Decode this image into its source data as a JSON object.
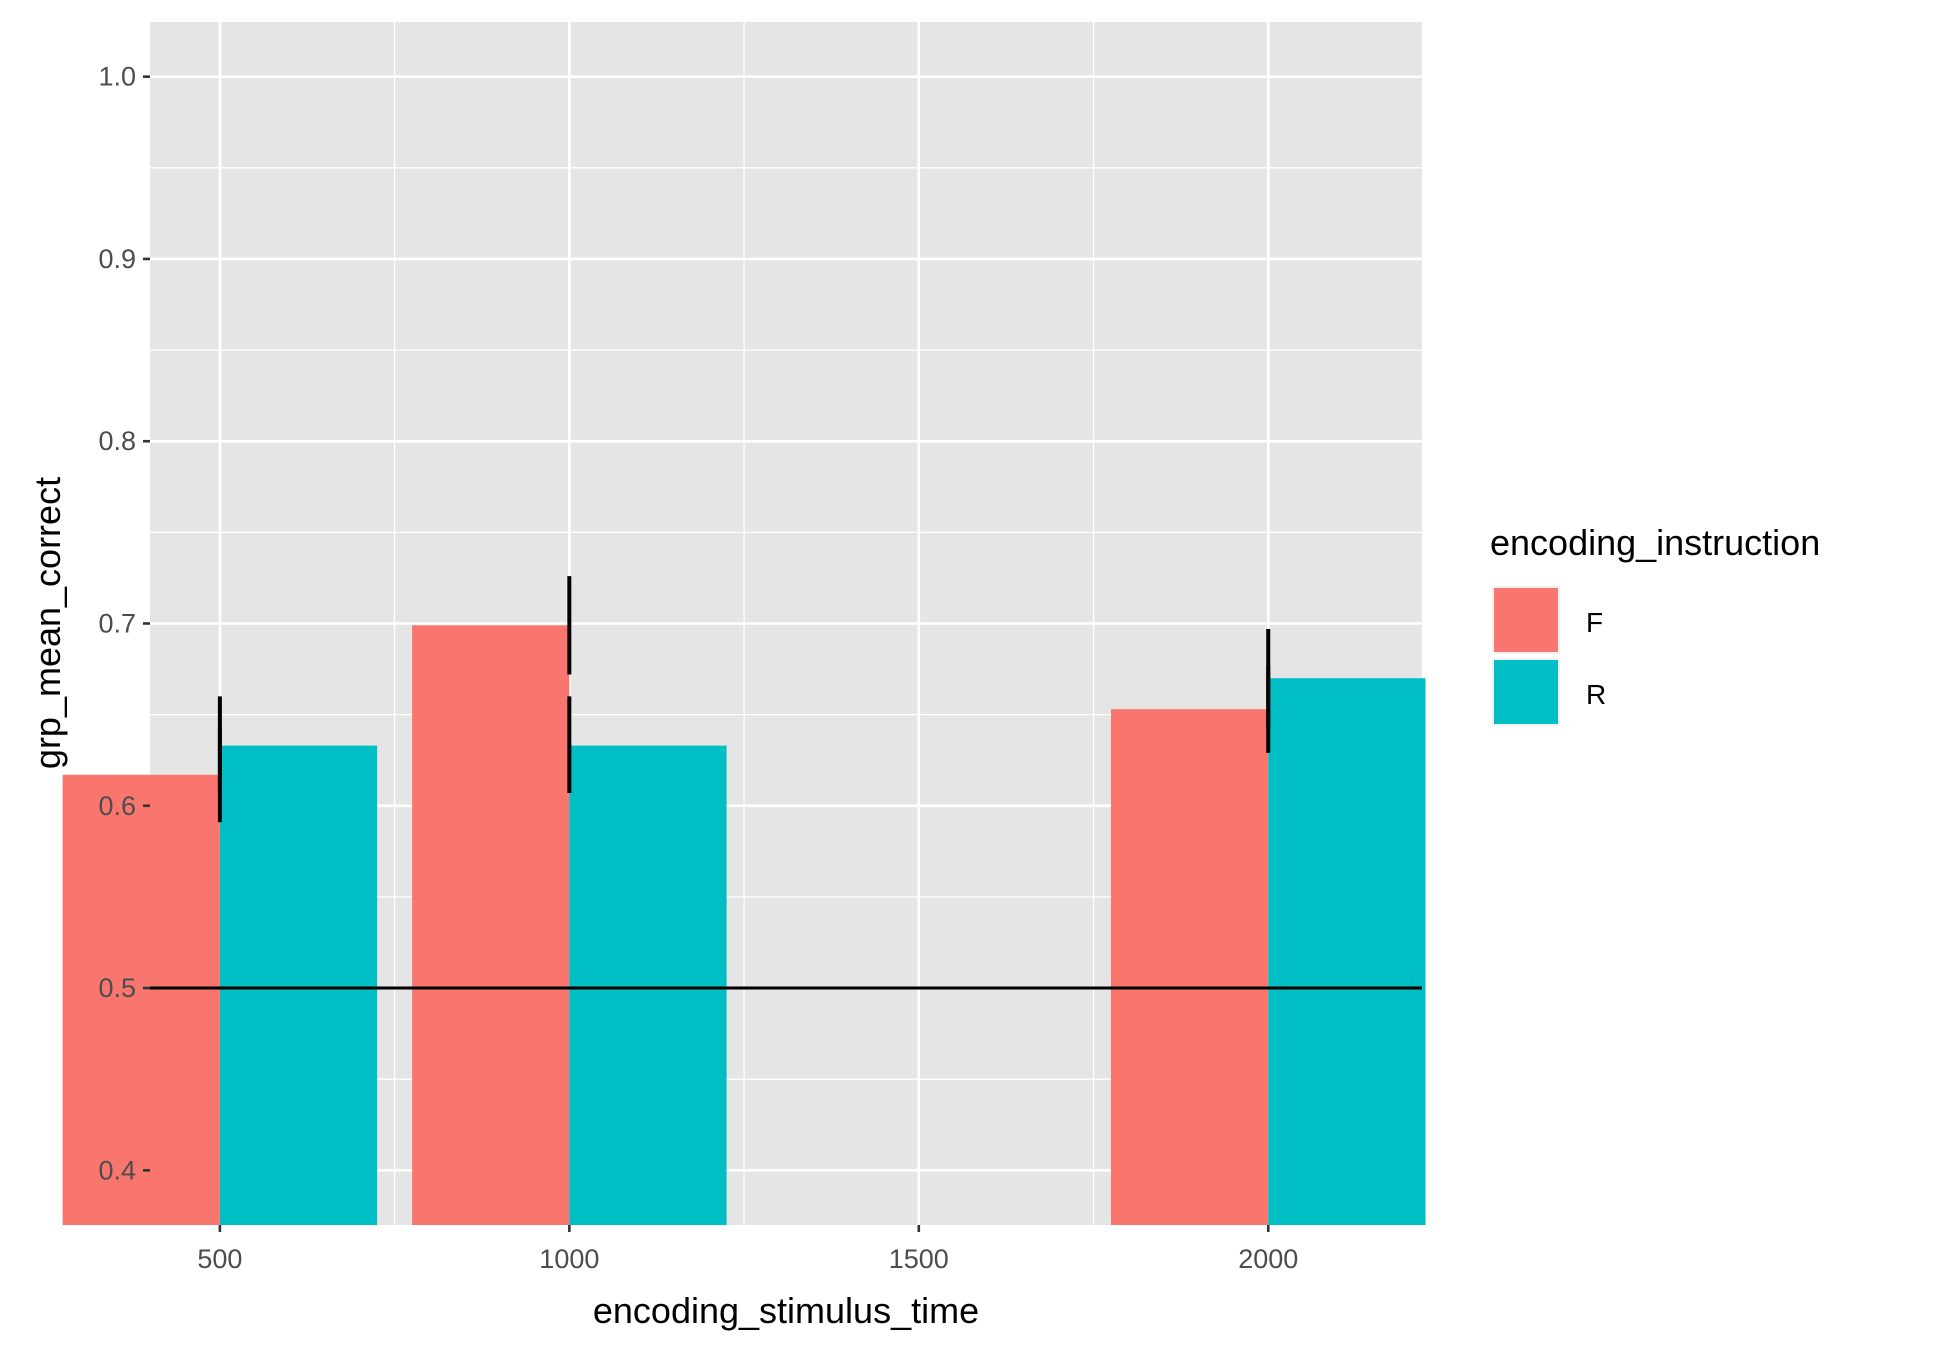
{
  "chart_data": {
    "type": "bar",
    "title": "",
    "xlabel": "encoding_stimulus_time",
    "ylabel": "grp_mean_correct",
    "x_ticks": [
      500,
      1000,
      1500,
      2000
    ],
    "xlim": [
      400,
      2220
    ],
    "y_ticks": [
      0.4,
      0.5,
      0.6,
      0.7,
      0.8,
      0.9,
      1.0
    ],
    "ylim": [
      0.37,
      1.03
    ],
    "grid": true,
    "legend": {
      "title": "encoding_instruction",
      "position": "right",
      "entries": [
        "F",
        "R"
      ]
    },
    "reference_line": {
      "y": 0.5,
      "color": "#000000"
    },
    "categories": [
      500,
      1000,
      2000
    ],
    "series": [
      {
        "name": "F",
        "color": "#F8766D",
        "values": [
          0.617,
          0.699,
          0.653
        ],
        "error_low": [
          0.591,
          0.672,
          0.629
        ],
        "error_high": [
          0.643,
          0.726,
          0.677
        ]
      },
      {
        "name": "R",
        "color": "#00BFC4",
        "values": [
          0.633,
          0.633,
          0.67
        ],
        "error_low": [
          0.607,
          0.607,
          0.643
        ],
        "error_high": [
          0.66,
          0.66,
          0.697
        ]
      }
    ]
  }
}
